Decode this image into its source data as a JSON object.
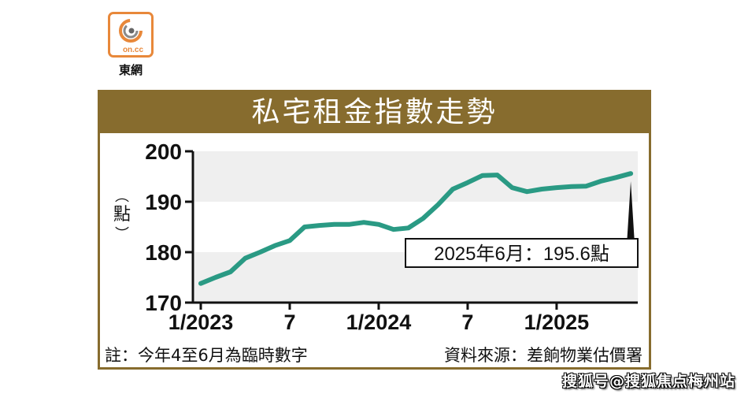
{
  "brand": {
    "logo_text": "on.cc",
    "logo_name": "東網",
    "logo_color": "#e8883a"
  },
  "header": {
    "title": "私宅租金指數走勢"
  },
  "annotation": {
    "label": "2025年6月：195.6點"
  },
  "footer": {
    "note": "註：今年4至6月為臨時數字",
    "source": "資料來源：差餉物業估價署"
  },
  "watermark": "搜狐号@搜狐焦点梅州站",
  "colors": {
    "frame": "#876c2e",
    "line": "#2a9a84",
    "band": "#efefef"
  },
  "chart_data": {
    "type": "line",
    "title": "私宅租金指數走勢",
    "xlabel": "",
    "ylabel": "點",
    "ylim": [
      170,
      200
    ],
    "yticks": [
      170,
      180,
      190,
      200
    ],
    "xtick_labels": [
      "1/2023",
      "7",
      "1/2024",
      "7",
      "1/2025"
    ],
    "grid": "alternating horizontal bands",
    "x": [
      "1/2023",
      "2/2023",
      "3/2023",
      "4/2023",
      "5/2023",
      "6/2023",
      "7/2023",
      "8/2023",
      "9/2023",
      "10/2023",
      "11/2023",
      "12/2023",
      "1/2024",
      "2/2024",
      "3/2024",
      "4/2024",
      "5/2024",
      "6/2024",
      "7/2024",
      "8/2024",
      "9/2024",
      "10/2024",
      "11/2024",
      "12/2024",
      "1/2025",
      "2/2025",
      "3/2025",
      "4/2025",
      "5/2025",
      "6/2025"
    ],
    "series": [
      {
        "name": "私宅租金指數",
        "values": [
          173.8,
          175.0,
          176.1,
          178.8,
          180.0,
          181.3,
          182.3,
          185.0,
          185.3,
          185.5,
          185.5,
          185.9,
          185.5,
          184.5,
          184.8,
          186.7,
          189.4,
          192.5,
          193.8,
          195.2,
          195.3,
          192.8,
          192.0,
          192.5,
          192.8,
          193.0,
          193.1,
          194.1,
          194.8,
          195.6
        ]
      }
    ],
    "annotations": [
      {
        "x": "6/2025",
        "y": 195.6,
        "text": "2025年6月：195.6點"
      }
    ],
    "notes": "註：今年4至6月為臨時數字",
    "source": "資料來源：差餉物業估價署"
  }
}
